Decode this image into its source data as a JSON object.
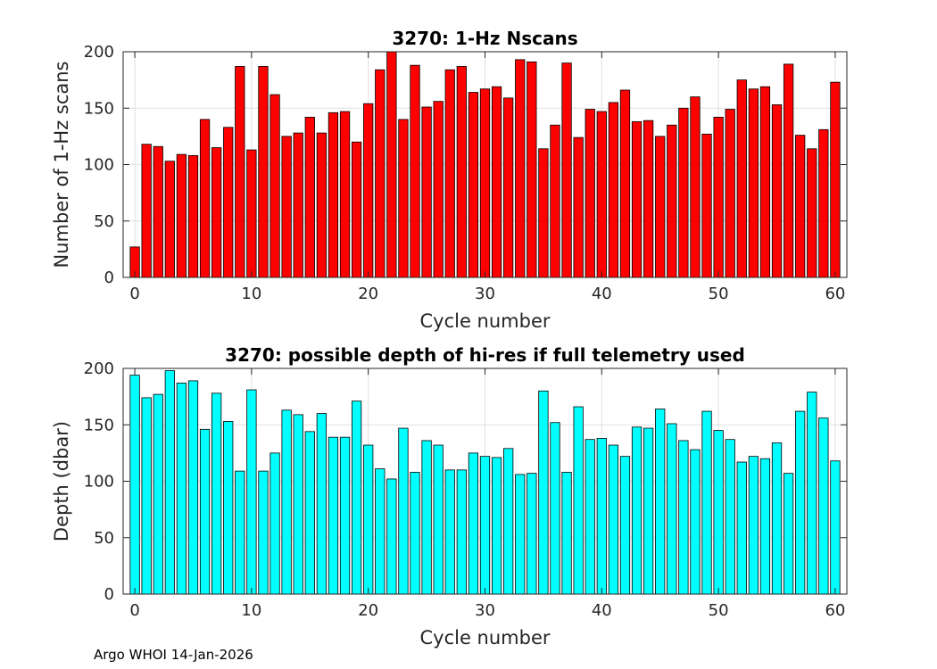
{
  "figure": {
    "footer": "Argo WHOI 14-Jan-2026"
  },
  "chart_data": [
    {
      "type": "bar",
      "title": "3270: 1-Hz Nscans",
      "xlabel": "Cycle number",
      "ylabel": "Number of 1-Hz scans",
      "bar_color": "#ff0000",
      "x": [
        0,
        1,
        2,
        3,
        4,
        5,
        6,
        7,
        8,
        9,
        10,
        11,
        12,
        13,
        14,
        15,
        16,
        17,
        18,
        19,
        20,
        21,
        22,
        23,
        24,
        25,
        26,
        27,
        28,
        29,
        30,
        31,
        32,
        33,
        34,
        35,
        36,
        37,
        38,
        39,
        40,
        41,
        42,
        43,
        44,
        45,
        46,
        47,
        48,
        49,
        50,
        51,
        52,
        53,
        54,
        55,
        56,
        57,
        58,
        59,
        60
      ],
      "values": [
        27,
        118,
        116,
        103,
        109,
        108,
        140,
        115,
        133,
        187,
        113,
        187,
        162,
        125,
        128,
        142,
        128,
        146,
        147,
        120,
        154,
        184,
        200,
        140,
        188,
        151,
        156,
        184,
        187,
        164,
        167,
        169,
        159,
        193,
        191,
        114,
        135,
        190,
        124,
        149,
        147,
        155,
        166,
        138,
        139,
        125,
        135,
        150,
        160,
        127,
        142,
        149,
        175,
        167,
        169,
        153,
        189,
        126,
        114,
        131,
        173
      ],
      "xlim": [
        -1,
        61
      ],
      "ylim": [
        0,
        200
      ],
      "xticks": [
        0,
        10,
        20,
        30,
        40,
        50,
        60
      ],
      "yticks": [
        0,
        50,
        100,
        150,
        200
      ],
      "grid": true
    },
    {
      "type": "bar",
      "title": "3270: possible depth of hi-res if full telemetry used",
      "xlabel": "Cycle number",
      "ylabel": "Depth (dbar)",
      "bar_color": "#00ffff",
      "x": [
        0,
        1,
        2,
        3,
        4,
        5,
        6,
        7,
        8,
        9,
        10,
        11,
        12,
        13,
        14,
        15,
        16,
        17,
        18,
        19,
        20,
        21,
        22,
        23,
        24,
        25,
        26,
        27,
        28,
        29,
        30,
        31,
        32,
        33,
        34,
        35,
        36,
        37,
        38,
        39,
        40,
        41,
        42,
        43,
        44,
        45,
        46,
        47,
        48,
        49,
        50,
        51,
        52,
        53,
        54,
        55,
        56,
        57,
        58,
        59,
        60
      ],
      "values": [
        194,
        174,
        177,
        198,
        187,
        189,
        146,
        178,
        153,
        109,
        181,
        109,
        125,
        163,
        159,
        144,
        160,
        139,
        139,
        171,
        132,
        111,
        102,
        147,
        108,
        136,
        132,
        110,
        110,
        125,
        122,
        121,
        129,
        106,
        107,
        180,
        152,
        108,
        166,
        137,
        138,
        132,
        122,
        148,
        147,
        164,
        151,
        136,
        128,
        162,
        145,
        137,
        117,
        122,
        120,
        134,
        107,
        162,
        179,
        156,
        118
      ],
      "xlim": [
        -1,
        61
      ],
      "ylim": [
        0,
        200
      ],
      "xticks": [
        0,
        10,
        20,
        30,
        40,
        50,
        60
      ],
      "yticks": [
        0,
        50,
        100,
        150,
        200
      ],
      "grid": true
    }
  ]
}
